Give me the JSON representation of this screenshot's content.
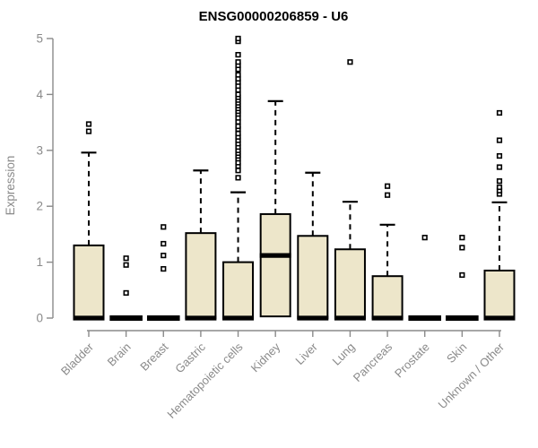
{
  "chart_data": {
    "type": "boxplot",
    "title": "ENSG00000206859 - U6",
    "ylabel": "Expression",
    "xlabel": "",
    "ylim": [
      0,
      5
    ],
    "yticks": [
      0,
      1,
      2,
      3,
      4,
      5
    ],
    "grid": false,
    "legend": false,
    "categories": [
      "Bladder",
      "Brain",
      "Breast",
      "Gastric",
      "Hematopoietic cells",
      "Kidney",
      "Liver",
      "Lung",
      "Pancreas",
      "Prostate",
      "Skin",
      "Unknown / Other"
    ],
    "boxes": [
      {
        "category": "Bladder",
        "q1": 0,
        "median": 0,
        "q3": 1.3,
        "whisker_low": 0,
        "whisker_high": 2.96,
        "outliers": [
          3.34,
          3.47
        ]
      },
      {
        "category": "Brain",
        "q1": 0,
        "median": 0,
        "q3": 0,
        "whisker_low": 0,
        "whisker_high": 0,
        "outliers": [
          0.45,
          0.95,
          1.07
        ]
      },
      {
        "category": "Breast",
        "q1": 0,
        "median": 0,
        "q3": 0,
        "whisker_low": 0,
        "whisker_high": 0,
        "outliers": [
          0.88,
          1.12,
          1.33,
          1.63
        ]
      },
      {
        "category": "Gastric",
        "q1": 0,
        "median": 0,
        "q3": 1.52,
        "whisker_low": 0,
        "whisker_high": 2.64,
        "outliers": []
      },
      {
        "category": "Hematopoietic cells",
        "q1": 0,
        "median": 0,
        "q3": 1.0,
        "whisker_low": 0,
        "whisker_high": 2.25,
        "outliers": [
          2.51,
          2.64,
          2.72,
          2.78,
          2.85,
          2.9,
          2.95,
          3.0,
          3.06,
          3.12,
          3.18,
          3.24,
          3.3,
          3.38,
          3.43,
          3.51,
          3.58,
          3.65,
          3.7,
          3.75,
          3.8,
          3.85,
          3.9,
          3.95,
          4.0,
          4.08,
          4.15,
          4.22,
          4.28,
          4.35,
          4.45,
          4.52,
          4.58,
          4.71,
          4.95,
          5.0
        ]
      },
      {
        "category": "Kidney",
        "q1": 0.03,
        "median": 1.12,
        "q3": 1.86,
        "whisker_low": 0,
        "whisker_high": 3.88,
        "outliers": []
      },
      {
        "category": "Liver",
        "q1": 0,
        "median": 0,
        "q3": 1.47,
        "whisker_low": 0,
        "whisker_high": 2.6,
        "outliers": []
      },
      {
        "category": "Lung",
        "q1": 0,
        "median": 0,
        "q3": 1.23,
        "whisker_low": 0,
        "whisker_high": 2.08,
        "outliers": [
          4.58
        ]
      },
      {
        "category": "Pancreas",
        "q1": 0,
        "median": 0,
        "q3": 0.75,
        "whisker_low": 0,
        "whisker_high": 1.67,
        "outliers": [
          2.2,
          2.36
        ]
      },
      {
        "category": "Prostate",
        "q1": 0,
        "median": 0,
        "q3": 0,
        "whisker_low": 0,
        "whisker_high": 0,
        "outliers": [
          1.44
        ]
      },
      {
        "category": "Skin",
        "q1": 0,
        "median": 0,
        "q3": 0,
        "whisker_low": 0,
        "whisker_high": 0,
        "outliers": [
          0.77,
          1.26,
          1.44
        ]
      },
      {
        "category": "Unknown / Other",
        "q1": 0,
        "median": 0,
        "q3": 0.85,
        "whisker_low": 0,
        "whisker_high": 2.07,
        "outliers": [
          2.22,
          2.28,
          2.34,
          2.45,
          2.7,
          2.9,
          3.18,
          3.67
        ]
      }
    ],
    "colors": {
      "box_fill": "#EDE6CA",
      "box_stroke": "#000000",
      "median": "#000000",
      "whisker": "#000000",
      "outlier_stroke": "#000000",
      "outlier_fill": "#ffffff",
      "axis": "#8a8a8a",
      "tick_label": "#8a8a8a",
      "category_label": "#8a8a8a",
      "ylabel": "#8a8a8a",
      "title": "#000000",
      "background": "#ffffff"
    }
  }
}
